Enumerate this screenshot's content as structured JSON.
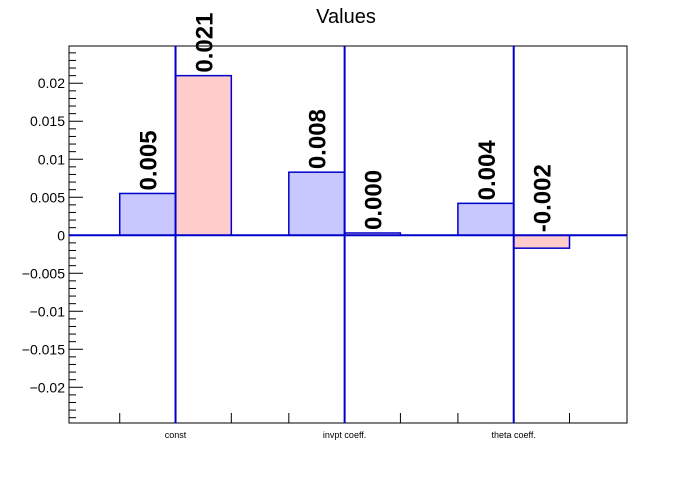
{
  "chart_data": {
    "type": "bar",
    "title": "Values",
    "categories": [
      "const",
      "invpt coeff.",
      "theta coeff."
    ],
    "series": [
      {
        "values": [
          0.0055,
          0.0083,
          0.0042
        ],
        "labels": [
          "0.005",
          "0.008",
          "0.004"
        ],
        "fill": "#c8c8ff",
        "stroke": "#0000cc"
      },
      {
        "values": [
          0.021,
          0.0003,
          -0.0017
        ],
        "labels": [
          "0.021",
          "0.000",
          "-0.002"
        ],
        "fill": "#ffcccc",
        "stroke": "#0000cc"
      }
    ],
    "ylim": [
      -0.0247,
      0.0249
    ],
    "yticks": [
      0.02,
      0.015,
      0.01,
      0.005,
      0,
      -0.005,
      -0.01,
      -0.015,
      -0.02
    ],
    "ytick_labels": [
      "0.02",
      "0.015",
      "0.01",
      "0.005",
      "0",
      "−0.005",
      "−0.01",
      "−0.015",
      "−0.02"
    ],
    "vertical_lines_at_categories": true,
    "grid": false,
    "axis_color": "#0000cc"
  }
}
